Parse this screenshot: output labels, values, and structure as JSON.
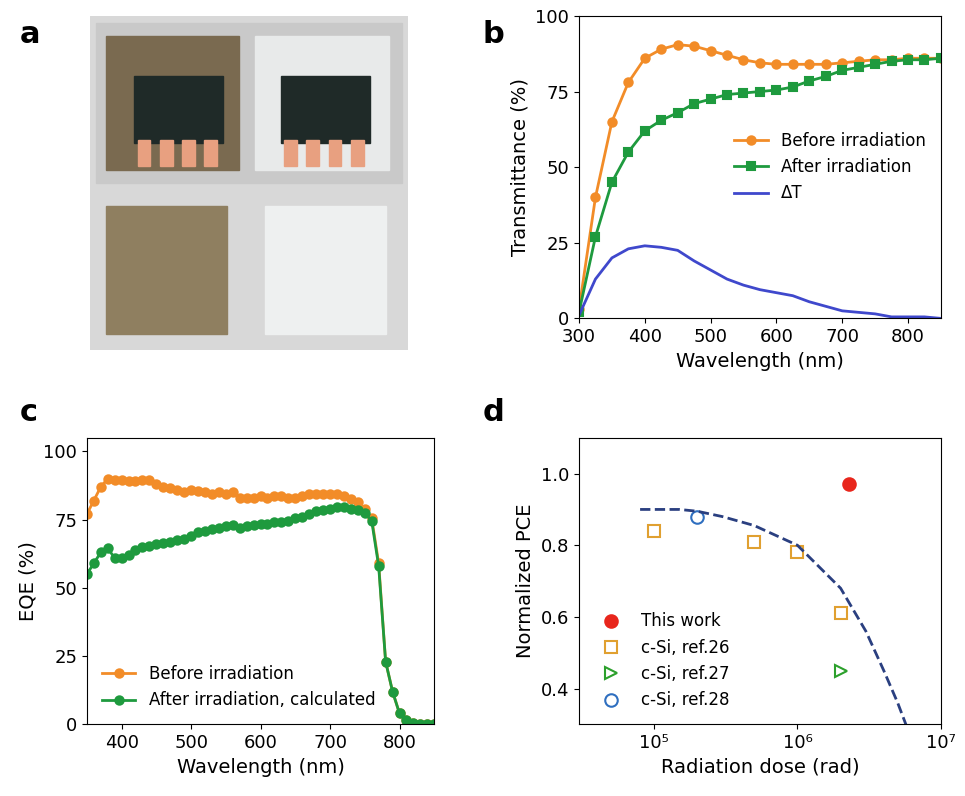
{
  "chart_data": [
    {
      "type": "photo",
      "title": "a"
    },
    {
      "type": "line",
      "title": "b",
      "x_label": "Wavelength (nm)",
      "y_label": "Transmittance (%)",
      "x": [
        300,
        325,
        350,
        375,
        400,
        425,
        450,
        475,
        500,
        525,
        550,
        575,
        600,
        625,
        650,
        675,
        700,
        725,
        750,
        775,
        800,
        825,
        850
      ],
      "series": [
        {
          "name": "Before irradiation",
          "color": "#f28c28",
          "marker": "circle",
          "line_style": "solid",
          "values": [
            3,
            40,
            65,
            78,
            86,
            89,
            90.5,
            90,
            88.5,
            87,
            85.5,
            84.5,
            84,
            84,
            84,
            84,
            84.5,
            85,
            85.5,
            85.5,
            86,
            86,
            86
          ]
        },
        {
          "name": "After irradiation",
          "color": "#1e9a3e",
          "marker": "square",
          "line_style": "solid",
          "values": [
            2,
            27,
            45,
            55,
            62,
            65.5,
            68,
            71,
            72.5,
            74,
            74.5,
            75,
            75.5,
            76.5,
            78.5,
            80,
            82,
            83,
            84,
            85,
            85.5,
            85.5,
            86
          ]
        },
        {
          "name": "ΔT",
          "color": "#3f48cc",
          "marker": "none",
          "line_style": "solid",
          "values": [
            1,
            13,
            20,
            23,
            24,
            23.5,
            22.5,
            19,
            16,
            13,
            11,
            9.5,
            8.5,
            7.5,
            5.5,
            4,
            2.5,
            2,
            1.5,
            0.5,
            0.5,
            0.5,
            0
          ]
        }
      ],
      "xlim": [
        300,
        850
      ],
      "xticks": [
        300,
        400,
        500,
        600,
        700,
        800
      ],
      "ylim": [
        0,
        100
      ],
      "yticks": [
        0,
        25,
        50,
        75,
        100
      ],
      "legend": "center right"
    },
    {
      "type": "line",
      "title": "c",
      "x_label": "Wavelength (nm)",
      "y_label": "EQE (%)",
      "x": [
        350,
        360,
        370,
        380,
        390,
        400,
        410,
        420,
        430,
        440,
        450,
        460,
        470,
        480,
        490,
        500,
        510,
        520,
        530,
        540,
        550,
        560,
        570,
        580,
        590,
        600,
        610,
        620,
        630,
        640,
        650,
        660,
        670,
        680,
        690,
        700,
        710,
        720,
        730,
        740,
        750,
        760,
        770,
        780,
        790,
        800,
        810,
        820,
        830,
        840,
        850
      ],
      "series": [
        {
          "name": "Before irradiation",
          "color": "#f28c28",
          "marker": "circle",
          "line_style": "solid",
          "values": [
            77,
            82,
            87,
            90,
            89.5,
            89.5,
            89,
            89,
            89.5,
            89.5,
            88,
            87,
            86.5,
            86,
            85,
            86,
            85.5,
            85,
            84.5,
            85,
            84.5,
            85,
            83,
            83,
            83,
            83.5,
            83,
            83.5,
            83.5,
            83,
            83,
            83.5,
            84.5,
            84.5,
            84.5,
            84.5,
            84.5,
            83.5,
            82.5,
            81.5,
            79,
            75.5,
            59,
            23,
            12,
            4,
            1.5,
            0.5,
            0.3,
            0.2,
            0
          ]
        },
        {
          "name": "After irradiation, calculated",
          "color": "#1e9a3e",
          "marker": "circle",
          "line_style": "solid",
          "values": [
            55,
            59,
            63,
            64.5,
            61,
            61,
            62,
            64,
            65,
            65.5,
            66,
            66.5,
            67,
            67.5,
            68,
            69,
            70.5,
            71,
            71.5,
            72,
            72.5,
            73,
            72,
            72.5,
            73,
            73.5,
            73.5,
            74,
            74,
            74.5,
            75.5,
            76,
            77,
            78,
            78.5,
            79,
            79.5,
            79.5,
            79,
            78.5,
            77.5,
            74.5,
            58,
            23,
            12,
            4,
            1.5,
            0.5,
            0.3,
            0.2,
            0
          ]
        }
      ],
      "xlim": [
        350,
        850
      ],
      "xticks": [
        400,
        500,
        600,
        700,
        800
      ],
      "ylim": [
        0,
        105
      ],
      "yticks": [
        0,
        25,
        50,
        75,
        100
      ],
      "legend": "lower left"
    },
    {
      "type": "scatter",
      "title": "d",
      "x_label": "Radiation dose (rad)",
      "y_label": "Normalized PCE",
      "log": "x",
      "series": [
        {
          "name": "This work",
          "color": "#e8261c",
          "marker": "circle",
          "line_style": "none",
          "x": [
            2300000
          ],
          "values": [
            0.97
          ]
        },
        {
          "name": "c-Si, ref.26",
          "color": "#e0a030",
          "marker": "open_square",
          "line_style": "none",
          "x": [
            100000,
            500000,
            1000000,
            2000000
          ],
          "values": [
            0.84,
            0.81,
            0.78,
            0.61
          ]
        },
        {
          "name": "c-Si, ref.27",
          "color": "#2ca02c",
          "marker": "open_triangle_right",
          "line_style": "none",
          "x": [
            2000000
          ],
          "values": [
            0.45
          ]
        },
        {
          "name": "c-Si, ref.28",
          "color": "#2f6fc0",
          "marker": "open_circle",
          "line_style": "none",
          "x": [
            200000
          ],
          "values": [
            0.88
          ]
        },
        {
          "color": "#2a3f80",
          "marker": "none",
          "line_style": "dashed",
          "type": "line",
          "x": [
            80000,
            150000,
            200000,
            300000,
            500000,
            1000000,
            2000000,
            3000000,
            4000000,
            5000000,
            5700000
          ],
          "values": [
            0.9,
            0.9,
            0.895,
            0.88,
            0.855,
            0.8,
            0.68,
            0.56,
            0.45,
            0.36,
            0.3
          ]
        }
      ],
      "xlim": [
        30000,
        10000000
      ],
      "xticks": [
        {
          "value": 100000,
          "label": "10⁵"
        },
        {
          "value": 1000000,
          "label": "10⁶"
        },
        {
          "value": 10000000,
          "label": "10⁷"
        }
      ],
      "ylim": [
        0.3,
        1.1
      ],
      "yticks": [
        {
          "value": 0.4,
          "label": "0.4"
        },
        {
          "value": 0.6,
          "label": "0.6"
        },
        {
          "value": 0.8,
          "label": "0.8"
        },
        {
          "value": 1.0,
          "label": "1.0"
        }
      ],
      "legend": "lower left"
    }
  ]
}
